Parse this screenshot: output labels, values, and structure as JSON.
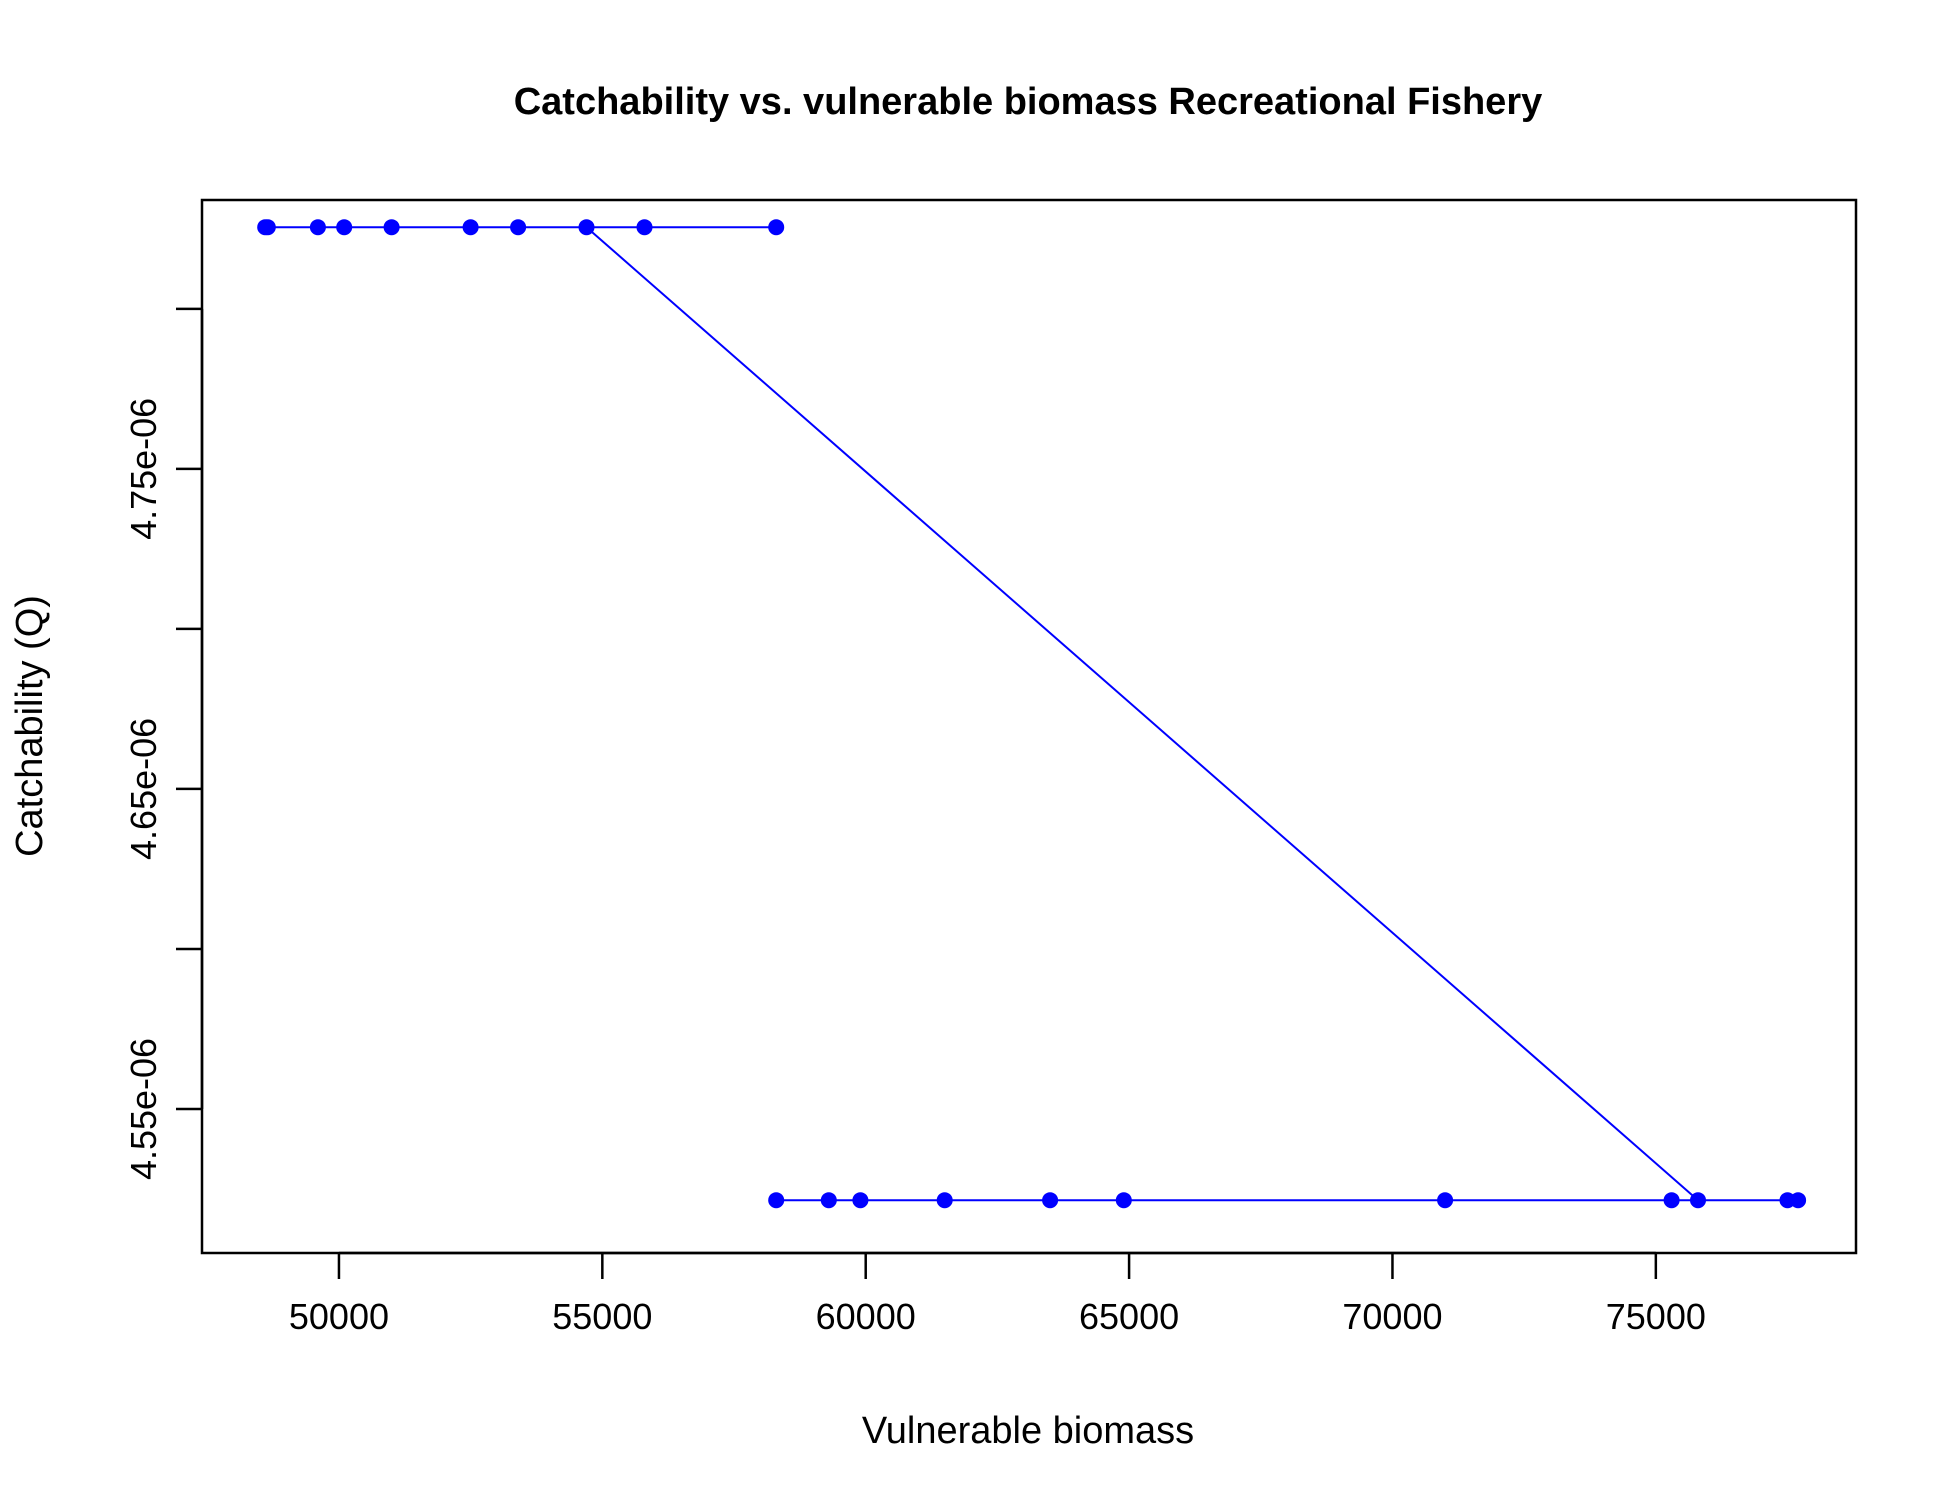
{
  "chart_data": {
    "type": "line",
    "title": "Catchability vs. vulnerable biomass Recreational Fishery",
    "xlabel": "Vulnerable biomass",
    "ylabel": "Catchability (Q)",
    "xlim": [
      47400,
      78800
    ],
    "ylim": [
      4.505e-06,
      4.834e-06
    ],
    "x_ticks": [
      50000,
      55000,
      60000,
      65000,
      70000,
      75000
    ],
    "x_tick_labels": [
      "50000",
      "55000",
      "60000",
      "65000",
      "70000",
      "75000"
    ],
    "y_ticks": [
      4.55e-06,
      4.6e-06,
      4.65e-06,
      4.7e-06,
      4.75e-06,
      4.8e-06
    ],
    "y_tick_labels": [
      "4.55e-06",
      "",
      "4.65e-06",
      "",
      "4.75e-06",
      ""
    ],
    "grid": false,
    "legend": "none",
    "series_color": "#0000ff",
    "series": [
      {
        "points": [
          [
            58300,
            4.8255e-06
          ],
          [
            55800,
            4.8255e-06
          ],
          [
            53400,
            4.8255e-06
          ],
          [
            52500,
            4.8255e-06
          ],
          [
            51000,
            4.8255e-06
          ],
          [
            50100,
            4.8255e-06
          ],
          [
            49600,
            4.8255e-06
          ],
          [
            48650,
            4.8255e-06
          ],
          [
            48600,
            4.8255e-06
          ],
          [
            54700,
            4.8255e-06
          ],
          [
            75800,
            4.5215e-06
          ],
          [
            75300,
            4.5215e-06
          ],
          [
            71000,
            4.5215e-06
          ],
          [
            64900,
            4.5215e-06
          ],
          [
            63500,
            4.5215e-06
          ],
          [
            61500,
            4.5215e-06
          ],
          [
            59900,
            4.5215e-06
          ],
          [
            59300,
            4.5215e-06
          ],
          [
            58300,
            4.5215e-06
          ],
          [
            77500,
            4.5215e-06
          ],
          [
            77700,
            4.5215e-06
          ]
        ]
      }
    ]
  }
}
